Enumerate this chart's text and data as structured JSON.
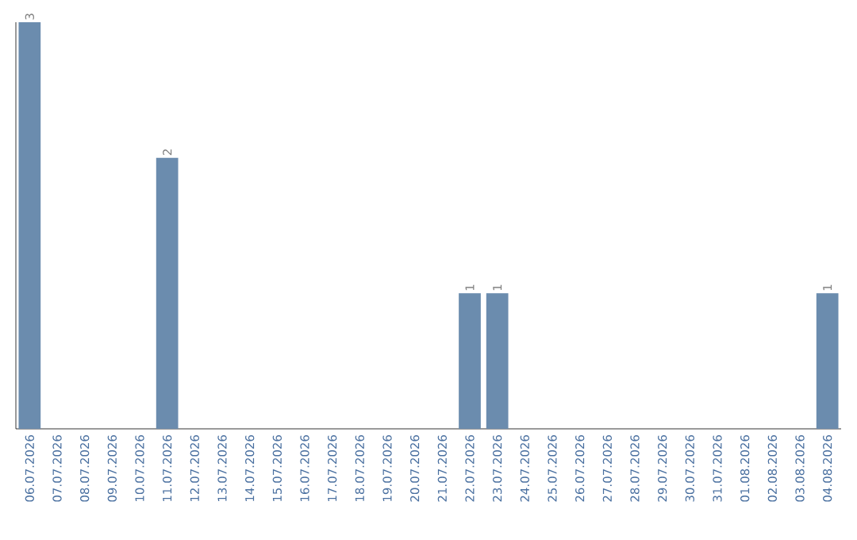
{
  "chart_data": {
    "type": "bar",
    "color": "#6b8cae",
    "categories": [
      "06.07.2026",
      "07.07.2026",
      "08.07.2026",
      "09.07.2026",
      "10.07.2026",
      "11.07.2026",
      "12.07.2026",
      "13.07.2026",
      "14.07.2026",
      "15.07.2026",
      "16.07.2026",
      "17.07.2026",
      "18.07.2026",
      "19.07.2026",
      "20.07.2026",
      "21.07.2026",
      "22.07.2026",
      "23.07.2026",
      "24.07.2026",
      "25.07.2026",
      "26.07.2026",
      "27.07.2026",
      "28.07.2026",
      "29.07.2026",
      "30.07.2026",
      "31.07.2026",
      "01.08.2026",
      "02.08.2026",
      "03.08.2026",
      "04.08.2026"
    ],
    "values": [
      3,
      0,
      0,
      0,
      0,
      2,
      0,
      0,
      0,
      0,
      0,
      0,
      0,
      0,
      0,
      0,
      1,
      1,
      0,
      0,
      0,
      0,
      0,
      0,
      0,
      0,
      0,
      0,
      0,
      1
    ],
    "value_labels": [
      "3",
      null,
      null,
      null,
      null,
      "2",
      null,
      null,
      null,
      null,
      null,
      null,
      null,
      null,
      null,
      null,
      "1",
      "1",
      null,
      null,
      null,
      null,
      null,
      null,
      null,
      null,
      null,
      null,
      null,
      "1"
    ],
    "grid": false
  }
}
